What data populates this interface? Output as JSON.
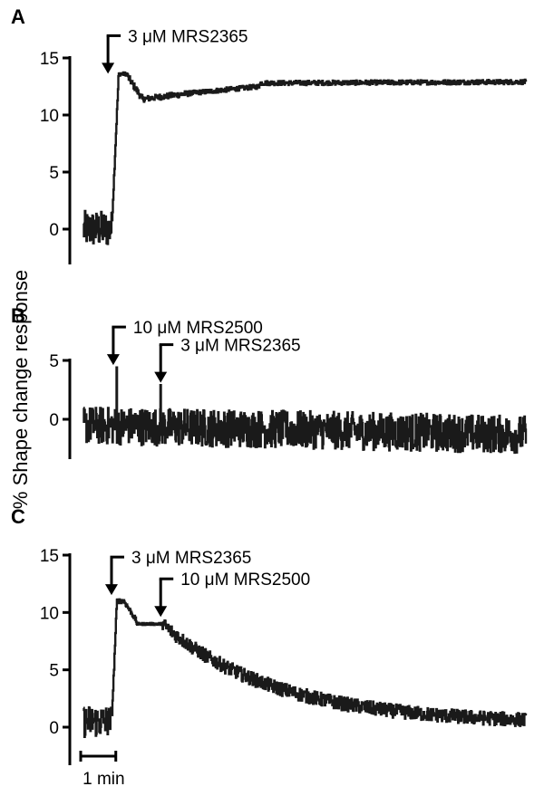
{
  "figure": {
    "ylabel": "% Shape change response",
    "scale_bar": {
      "label": "1 min",
      "duration_min": 1
    },
    "colors": {
      "trace": "#1a1a1a",
      "axis": "#000000"
    }
  },
  "chart_data": [
    {
      "type": "line",
      "panel": "A",
      "x_unit": "min",
      "yticks": [
        "15",
        "10",
        "5",
        "0"
      ],
      "ylim": [
        -3,
        15
      ],
      "xlim": [
        0,
        12.6
      ],
      "segments": [
        {
          "t0": 0,
          "t1": 0.8,
          "level": 0,
          "noise": 1.6
        },
        {
          "t0": 0.8,
          "t1": 1.0,
          "level_from": 0,
          "level_to": 13.6,
          "noise": 0.3
        },
        {
          "t0": 1.0,
          "t1": 1.25,
          "level": 13.6,
          "noise": 0.15
        },
        {
          "t0": 1.25,
          "t1": 1.7,
          "level_from": 13.4,
          "level_to": 11.3,
          "noise": 0.3
        },
        {
          "t0": 1.7,
          "t1": 3.0,
          "level_from": 11.4,
          "level_to": 11.9,
          "noise": 0.25
        },
        {
          "t0": 3.0,
          "t1": 5.0,
          "level_from": 11.9,
          "level_to": 12.5,
          "noise": 0.2
        },
        {
          "t0": 5.0,
          "t1": 12.6,
          "level_from": 12.8,
          "level_to": 12.9,
          "noise": 0.2
        }
      ],
      "annotations": [
        {
          "label": "3 μM MRS2365",
          "t": 0.7,
          "y": 13.3
        }
      ]
    },
    {
      "type": "line",
      "panel": "B",
      "x_unit": "min",
      "yticks": [
        "5",
        "0"
      ],
      "ylim": [
        -3,
        5
      ],
      "xlim": [
        0,
        12.6
      ],
      "segments": [
        {
          "t0": 0,
          "t1": 12.6,
          "level_from": -0.5,
          "level_to": -1.3,
          "noise": 1.6
        }
      ],
      "spikes": [
        {
          "t": 0.95,
          "y": 4.5
        },
        {
          "t": 2.2,
          "y": 3.0
        }
      ],
      "annotations": [
        {
          "label": "10 μM MRS2500",
          "t": 0.85,
          "y": 4.3
        },
        {
          "label": "3 μM MRS2365",
          "t": 2.2,
          "y": 2.8
        }
      ]
    },
    {
      "type": "line",
      "panel": "C",
      "x_unit": "min",
      "yticks": [
        "15",
        "10",
        "5",
        "0"
      ],
      "ylim": [
        -3,
        15
      ],
      "xlim": [
        0,
        12.6
      ],
      "segments": [
        {
          "t0": 0,
          "t1": 0.8,
          "level": 0.5,
          "noise": 1.4
        },
        {
          "t0": 0.8,
          "t1": 0.95,
          "level_from": 0.5,
          "level_to": 11.0,
          "noise": 0.3
        },
        {
          "t0": 0.95,
          "t1": 1.15,
          "level": 11.0,
          "noise": 0.2
        },
        {
          "t0": 1.15,
          "t1": 1.5,
          "level_from": 11.0,
          "level_to": 9.3,
          "noise": 0.2
        },
        {
          "t0": 1.5,
          "t1": 2.25,
          "level": 9.0,
          "noise": 0.1
        },
        {
          "t0": 2.25,
          "t1": 12.6,
          "decay_from": 9.0,
          "decay_to": 0.3,
          "tau": 3.2,
          "noise": 0.6
        }
      ],
      "annotations": [
        {
          "label": "3 μM MRS2365",
          "t": 0.8,
          "y": 11.2
        },
        {
          "label": "10 μM MRS2500",
          "t": 2.2,
          "y": 9.3
        }
      ]
    }
  ]
}
